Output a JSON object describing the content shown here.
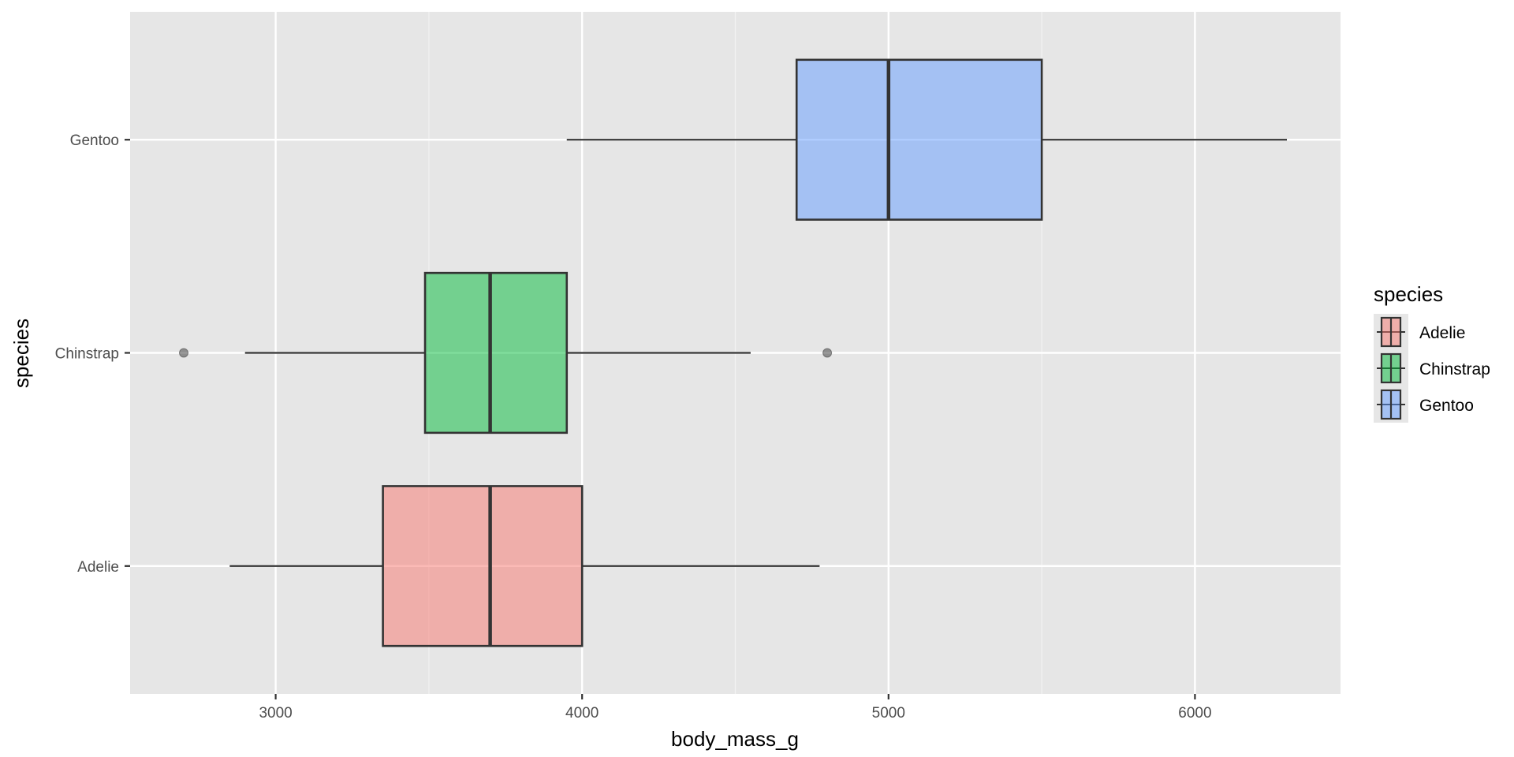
{
  "chart_data": {
    "type": "boxplot",
    "orientation": "horizontal",
    "title": "",
    "xlabel": "body_mass_g",
    "ylabel": "species",
    "xlim": [
      2525,
      6475
    ],
    "x_ticks": [
      3000,
      4000,
      5000,
      6000
    ],
    "x_tick_labels": [
      "3000",
      "4000",
      "5000",
      "6000"
    ],
    "categories": [
      "Adelie",
      "Chinstrap",
      "Gentoo"
    ],
    "grid": true,
    "legend": {
      "title": "species",
      "position": "right"
    },
    "box_alpha": 0.5,
    "series": [
      {
        "name": "Adelie",
        "color": "#F8766D",
        "whisker_low": 2850,
        "q1": 3350,
        "median": 3700,
        "q3": 4000,
        "whisker_high": 4775,
        "outliers": []
      },
      {
        "name": "Chinstrap",
        "color": "#00BA38",
        "whisker_low": 2900,
        "q1": 3487.5,
        "median": 3700,
        "q3": 3950,
        "whisker_high": 4550,
        "outliers": [
          2700,
          4800
        ]
      },
      {
        "name": "Gentoo",
        "color": "#619CFF",
        "whisker_low": 3950,
        "q1": 4700,
        "median": 5000,
        "q3": 5500,
        "whisker_high": 6300,
        "outliers": []
      }
    ]
  }
}
